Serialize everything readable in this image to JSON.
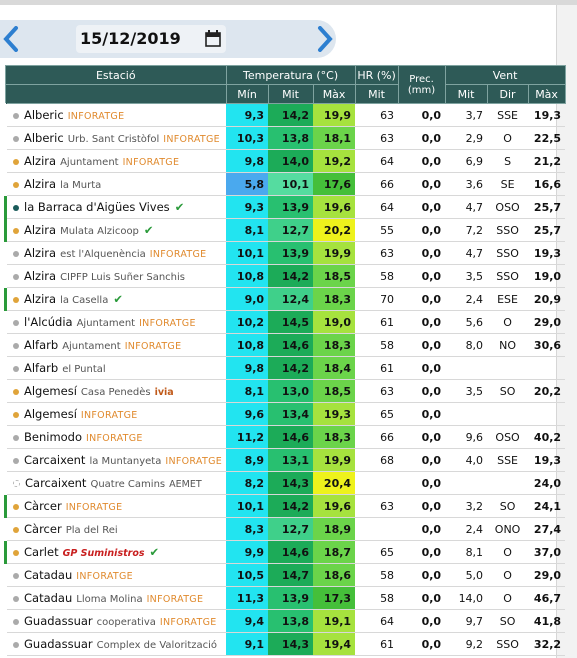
{
  "date": "15/12/2019",
  "table": {
    "header": [
      "Estació",
      "Temperatura (°C)",
      "HR (%)",
      "Prec. (mm)",
      "Vent"
    ],
    "subheader": [
      "Mín",
      "Mit",
      "Màx",
      "Mit",
      "Mit",
      "Dir",
      "Màx"
    ],
    "rows": [
      {
        "town": "Alberic",
        "source": "INFORATGE",
        "cells": [
          "9,3",
          "14,2",
          "19,9",
          "63",
          "0,0",
          "3,7",
          "SSE",
          "19,3"
        ]
      },
      {
        "town": "Alberic",
        "place": "Urb. Sant Cristòfol",
        "source": "INFORATGE",
        "cells": [
          "10,3",
          "13,8",
          "18,1",
          "63",
          "0,0",
          "2,9",
          "O",
          "22,5"
        ]
      },
      {
        "town": "Alzira",
        "place": "Ajuntament",
        "source": "INFORATGE",
        "cells": [
          "9,8",
          "14,0",
          "19,2",
          "64",
          "0,0",
          "6,9",
          "S",
          "21,2"
        ]
      },
      {
        "town": "Alzira",
        "place": "la Murta",
        "cells": [
          "5,8",
          "10,1",
          "17,6",
          "66",
          "0,0",
          "3,6",
          "SE",
          "16,6"
        ]
      },
      {
        "town": "la Barraca d'Aigües Vives",
        "cells": [
          "9,3",
          "13,9",
          "19,6",
          "64",
          "0,0",
          "4,7",
          "OSO",
          "25,7"
        ]
      },
      {
        "town": "Alzira",
        "place": "Mulata Alzicoop",
        "cells": [
          "8,1",
          "12,7",
          "20,2",
          "55",
          "0,0",
          "7,2",
          "SSO",
          "25,7"
        ]
      },
      {
        "town": "Alzira",
        "place": "est l'Alquenència",
        "source": "INFORATGE",
        "cells": [
          "10,1",
          "13,9",
          "19,9",
          "63",
          "0,0",
          "4,7",
          "SSO",
          "19,3"
        ]
      },
      {
        "town": "Alzira",
        "place": "CIPFP Luis Suñer Sanchis",
        "cells": [
          "10,8",
          "14,2",
          "18,5",
          "58",
          "0,0",
          "3,5",
          "SSO",
          "19,0"
        ]
      },
      {
        "town": "Alzira",
        "place": "la Casella",
        "cells": [
          "9,0",
          "12,4",
          "18,3",
          "70",
          "0,0",
          "2,4",
          "ESE",
          "20,9"
        ]
      },
      {
        "town": "l'Alcúdia",
        "place": "Ajuntament",
        "source": "INFORATGE",
        "cells": [
          "10,2",
          "14,5",
          "19,0",
          "61",
          "0,0",
          "5,6",
          "O",
          "29,0"
        ]
      },
      {
        "town": "Alfarb",
        "place": "Ajuntament",
        "source": "INFORATGE",
        "cells": [
          "10,8",
          "14,6",
          "18,3",
          "58",
          "0,0",
          "8,0",
          "NO",
          "30,6"
        ]
      },
      {
        "town": "Alfarb",
        "place": "el Puntal",
        "cells": [
          "9,8",
          "14,2",
          "18,4",
          "61",
          "0,0",
          null,
          null,
          null
        ]
      },
      {
        "town": "Algemesí",
        "place": "Casa Penedès",
        "source": "ivia",
        "cells": [
          "8,1",
          "13,0",
          "18,5",
          "63",
          "0,0",
          "3,5",
          "SO",
          "20,2"
        ]
      },
      {
        "town": "Algemesí",
        "source": "INFORATGE",
        "cells": [
          "9,6",
          "13,4",
          "19,3",
          "65",
          "0,0",
          null,
          null,
          null
        ]
      },
      {
        "town": "Benimodo",
        "source": "INFORATGE",
        "cells": [
          "11,2",
          "14,6",
          "18,3",
          "66",
          "0,0",
          "9,6",
          "OSO",
          "40,2"
        ]
      },
      {
        "town": "Carcaixent",
        "place": "la Muntanyeta",
        "source": "INFORATGE",
        "cells": [
          "8,9",
          "13,1",
          "19,9",
          "68",
          "0,0",
          "4,0",
          "SSE",
          "19,3"
        ]
      },
      {
        "town": "Carcaixent",
        "place": "Quatre Camins",
        "source": "AEMET",
        "cells": [
          "8,2",
          "14,3",
          "20,4",
          null,
          "0,0",
          null,
          null,
          "24,0"
        ]
      },
      {
        "town": "Càrcer",
        "source": "INFORATGE",
        "cells": [
          "10,1",
          "14,2",
          "19,6",
          "63",
          "0,0",
          "3,2",
          "SO",
          "24,1"
        ]
      },
      {
        "town": "Càrcer",
        "place": "Pla del Rei",
        "cells": [
          "8,3",
          "12,7",
          "18,9",
          null,
          "0,0",
          "2,4",
          "ONO",
          "27,4"
        ]
      },
      {
        "town": "Carlet",
        "source": "GP Suministros",
        "cells": [
          "9,9",
          "14,6",
          "18,7",
          "65",
          "0,0",
          "8,1",
          "O",
          "37,0"
        ]
      },
      {
        "town": "Catadau",
        "source": "INFORATGE",
        "cells": [
          "10,5",
          "14,7",
          "18,6",
          "58",
          "0,0",
          "5,0",
          "O",
          "29,0"
        ]
      },
      {
        "town": "Catadau",
        "place": "Lloma Molina",
        "source": "INFORATGE",
        "cells": [
          "11,3",
          "13,9",
          "17,3",
          "58",
          "0,0",
          "14,0",
          "O",
          "46,7"
        ]
      },
      {
        "town": "Guadassuar",
        "place": "cooperativa",
        "source": "INFORATGE",
        "cells": [
          "9,4",
          "13,8",
          "19,1",
          "64",
          "0,0",
          "9,7",
          "SO",
          "41,8"
        ]
      },
      {
        "town": "Guadassuar",
        "place": "Complex de Valorització",
        "cells": [
          "9,1",
          "14,3",
          "19,4",
          "61",
          "0,0",
          "9,2",
          "SSO",
          "32,2"
        ]
      }
    ]
  }
}
